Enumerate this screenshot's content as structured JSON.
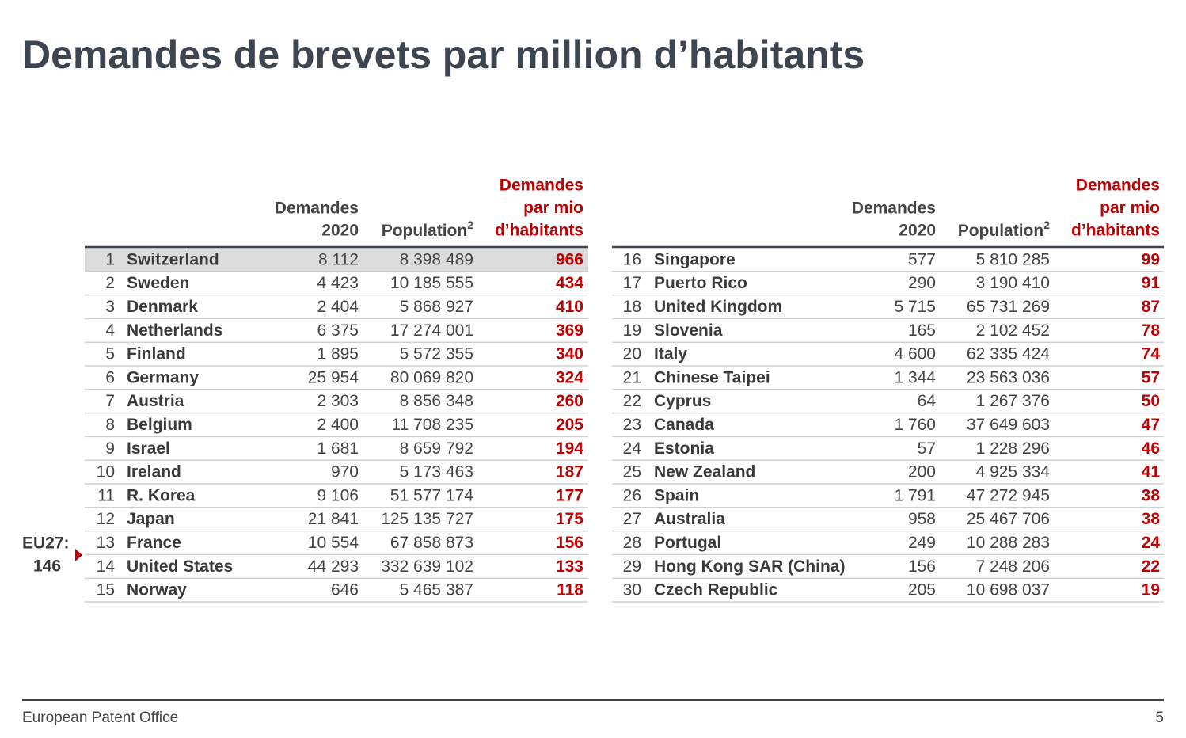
{
  "title": "Demandes de brevets par million d’habitants",
  "tables": [
    {
      "header": {
        "demandes": [
          "Demandes",
          "2020"
        ],
        "population": {
          "text": "Population",
          "sup": "2"
        },
        "rate": [
          "Demandes",
          "par mio",
          "d’habitants"
        ]
      },
      "rows": [
        [
          "1",
          "Switzerland",
          "8 112",
          "8 398 489",
          "966"
        ],
        [
          "2",
          "Sweden",
          "4 423",
          "10 185 555",
          "434"
        ],
        [
          "3",
          "Denmark",
          "2 404",
          "5 868 927",
          "410"
        ],
        [
          "4",
          "Netherlands",
          "6 375",
          "17 274 001",
          "369"
        ],
        [
          "5",
          "Finland",
          "1 895",
          "5 572 355",
          "340"
        ],
        [
          "6",
          "Germany",
          "25 954",
          "80 069 820",
          "324"
        ],
        [
          "7",
          "Austria",
          "2 303",
          "8 856 348",
          "260"
        ],
        [
          "8",
          "Belgium",
          "2 400",
          "11 708 235",
          "205"
        ],
        [
          "9",
          "Israel",
          "1 681",
          "8 659 792",
          "194"
        ],
        [
          "10",
          "Ireland",
          "970",
          "5 173 463",
          "187"
        ],
        [
          "11",
          "R. Korea",
          "9 106",
          "51 577 174",
          "177"
        ],
        [
          "12",
          "Japan",
          "21 841",
          "125 135 727",
          "175"
        ],
        [
          "13",
          "France",
          "10 554",
          "67 858 873",
          "156"
        ],
        [
          "14",
          "United States",
          "44 293",
          "332 639 102",
          "133"
        ],
        [
          "15",
          "Norway",
          "646",
          "5 465 387",
          "118"
        ]
      ]
    },
    {
      "header": {
        "demandes": [
          "Demandes",
          "2020"
        ],
        "population": {
          "text": "Population",
          "sup": "2"
        },
        "rate": [
          "Demandes",
          "par mio",
          "d’habitants"
        ]
      },
      "rows": [
        [
          "16",
          "Singapore",
          "577",
          "5 810 285",
          "99"
        ],
        [
          "17",
          "Puerto Rico",
          "290",
          "3 190 410",
          "91"
        ],
        [
          "18",
          "United Kingdom",
          "5 715",
          "65 731 269",
          "87"
        ],
        [
          "19",
          "Slovenia",
          "165",
          "2 102 452",
          "78"
        ],
        [
          "20",
          "Italy",
          "4 600",
          "62 335 424",
          "74"
        ],
        [
          "21",
          "Chinese Taipei",
          "1 344",
          "23 563 036",
          "57"
        ],
        [
          "22",
          "Cyprus",
          "64",
          "1 267 376",
          "50"
        ],
        [
          "23",
          "Canada",
          "1 760",
          "37 649 603",
          "47"
        ],
        [
          "24",
          "Estonia",
          "57",
          "1 228 296",
          "46"
        ],
        [
          "25",
          "New Zealand",
          "200",
          "4 925 334",
          "41"
        ],
        [
          "26",
          "Spain",
          "1 791",
          "47 272 945",
          "38"
        ],
        [
          "27",
          "Australia",
          "958",
          "25 467 706",
          "38"
        ],
        [
          "28",
          "Portugal",
          "249",
          "10 288 283",
          "24"
        ],
        [
          "29",
          "Hong Kong SAR (China)",
          "156",
          "7 248 206",
          "22"
        ],
        [
          "30",
          "Czech Republic",
          "205",
          "10 698 037",
          "19"
        ]
      ]
    }
  ],
  "eu27": {
    "label": "EU27:",
    "value": "146"
  },
  "footer": {
    "source": "European Patent Office",
    "page": "5"
  }
}
